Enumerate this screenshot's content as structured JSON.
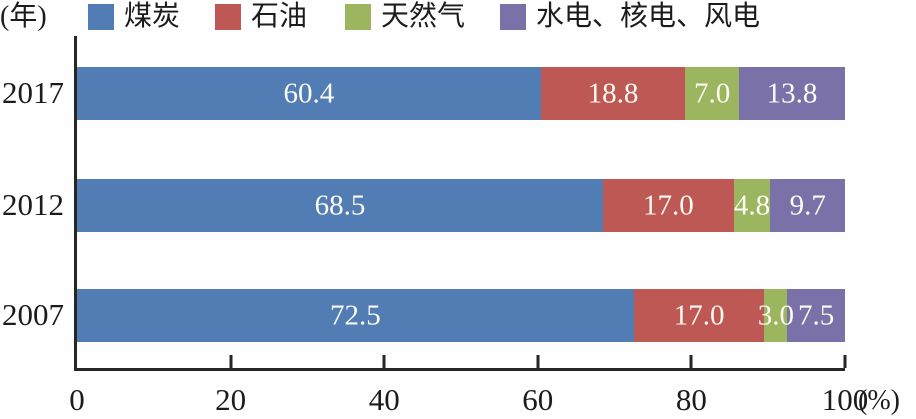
{
  "chart_data": {
    "type": "bar",
    "orientation": "horizontal",
    "stacked": true,
    "grid": false,
    "legend_position": "top",
    "categories": [
      "2017",
      "2012",
      "2007"
    ],
    "series": [
      {
        "key": "coal",
        "name": "煤炭",
        "color": "#517CB4",
        "values": [
          60.4,
          68.5,
          72.5
        ]
      },
      {
        "key": "oil",
        "name": "石油",
        "color": "#BE5855",
        "values": [
          18.8,
          17.0,
          17.0
        ]
      },
      {
        "key": "natural-gas",
        "name": "天然气",
        "color": "#9CB55F",
        "values": [
          7.0,
          4.8,
          3.0
        ]
      },
      {
        "key": "hydro-nuclear-wind",
        "name": "水电、核电、风电",
        "color": "#7B71A9",
        "values": [
          13.8,
          9.7,
          7.5
        ]
      }
    ],
    "value_labels": [
      [
        "60.4",
        "18.8",
        "7.0",
        "13.8"
      ],
      [
        "68.5",
        "17.0",
        "4.8",
        "9.7"
      ],
      [
        "72.5",
        "17.0",
        "3.0",
        "7.5"
      ]
    ],
    "x_axis": {
      "ticks": [
        "0",
        "20",
        "40",
        "60",
        "80",
        "100"
      ],
      "range": [
        0,
        100
      ],
      "unit_label": "(%)"
    },
    "y_axis": {
      "unit_label": "(年)"
    },
    "colors": {
      "axis": "#262626",
      "value_label_text": "#fbfbf2",
      "background": "#fefefe"
    }
  }
}
